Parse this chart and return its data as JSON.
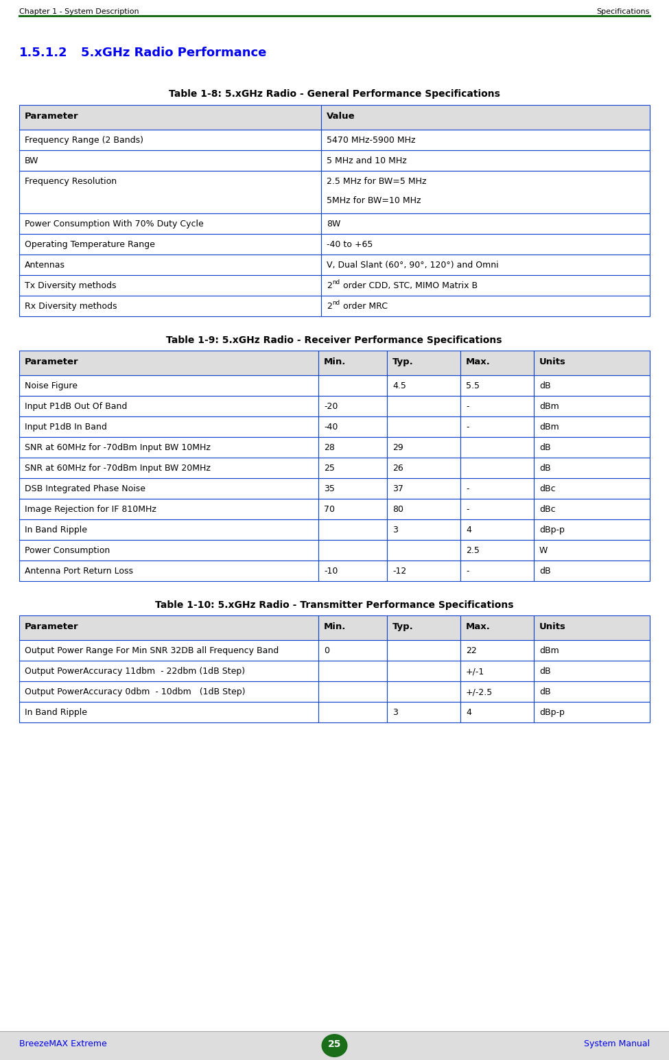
{
  "header_left": "Chapter 1 - System Description",
  "header_right": "Specifications",
  "header_line_color": "#1a6e1a",
  "section_number": "1.5.1.2",
  "section_title": "5.xGHz Radio Performance",
  "section_color": "#0000EE",
  "footer_left": "BreezeMAX Extreme",
  "footer_right": "System Manual",
  "footer_page": "25",
  "footer_bg": "#DDDDDD",
  "footer_color": "#0000EE",
  "table1_title": "Table 1-8: 5.xGHz Radio - General Performance Specifications",
  "table1_header": [
    "Parameter",
    "Value"
  ],
  "table1_rows": [
    [
      "Frequency Range (2 Bands)",
      "5470 MHz-5900 MHz",
      false
    ],
    [
      "BW",
      "5 MHz and 10 MHz",
      false
    ],
    [
      "Frequency Resolution",
      "2.5 MHz for BW=5 MHz\n5MHz for BW=10 MHz",
      false
    ],
    [
      "Power Consumption With 70% Duty Cycle",
      "8W",
      false
    ],
    [
      "Operating Temperature Range",
      "-40 to +65",
      false
    ],
    [
      "Antennas",
      "V, Dual Slant (60°, 90°, 120°) and Omni",
      false
    ],
    [
      "Tx Diversity methods",
      "2nd order CDD, STC, MIMO Matrix B",
      true
    ],
    [
      "Rx Diversity methods",
      "2nd order MRC",
      true
    ]
  ],
  "table2_title": "Table 1-9: 5.xGHz Radio - Receiver Performance Specifications",
  "table2_header": [
    "Parameter",
    "Min.",
    "Typ.",
    "Max.",
    "Units"
  ],
  "table2_rows": [
    [
      "Noise Figure",
      "",
      "4.5",
      "5.5",
      "dB"
    ],
    [
      "Input P1dB Out Of Band",
      "-20",
      "",
      "-",
      "dBm"
    ],
    [
      "Input P1dB In Band",
      "-40",
      "",
      "-",
      "dBm"
    ],
    [
      "SNR at 60MHz for -70dBm Input BW 10MHz",
      "28",
      "29",
      "",
      "dB"
    ],
    [
      "SNR at 60MHz for -70dBm Input BW 20MHz",
      "25",
      "26",
      "",
      "dB"
    ],
    [
      "DSB Integrated Phase Noise",
      "35",
      "37",
      "-",
      "dBc"
    ],
    [
      "Image Rejection for IF 810MHz",
      "70",
      "80",
      "-",
      "dBc"
    ],
    [
      "In Band Ripple",
      "",
      "3",
      "4",
      "dBp-p"
    ],
    [
      "Power Consumption",
      "",
      "",
      "2.5",
      "W"
    ],
    [
      "Antenna Port Return Loss",
      "-10",
      "-12",
      "-",
      "dB"
    ]
  ],
  "table3_title": "Table 1-10: 5.xGHz Radio - Transmitter Performance Specifications",
  "table3_header": [
    "Parameter",
    "Min.",
    "Typ.",
    "Max.",
    "Units"
  ],
  "table3_rows": [
    [
      "Output Power Range For Min SNR 32DB all Frequency Band",
      "0",
      "",
      "22",
      "dBm"
    ],
    [
      "Output PowerAccuracy 11dbm  - 22dbm (1dB Step)",
      "",
      "",
      "+/-1",
      "dB"
    ],
    [
      "Output PowerAccuracy 0dbm  - 10dbm   (1dB Step)",
      "",
      "",
      "+/-2.5",
      "dB"
    ],
    [
      "In Band Ripple",
      "",
      "3",
      "4",
      "dBp-p"
    ]
  ],
  "table_border_color": "#1144CC",
  "table_header_bg": "#DDDDDD",
  "text_color": "#000000",
  "page_bg": "#FFFFFF"
}
